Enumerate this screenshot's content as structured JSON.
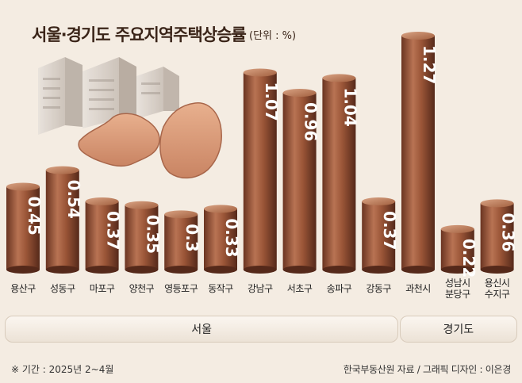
{
  "chart_data": {
    "type": "bar",
    "title": "서울·경기도 주요지역주택상승률",
    "unit_label": "(단위 : %)",
    "categories": [
      "용산구",
      "성동구",
      "마포구",
      "양천구",
      "영등포구",
      "동작구",
      "강남구",
      "서초구",
      "송파구",
      "강동구",
      "과천시",
      "성남시\n분당구",
      "용신시\n수지구"
    ],
    "values": [
      0.45,
      0.54,
      0.37,
      0.35,
      0.3,
      0.33,
      1.07,
      0.96,
      1.04,
      0.37,
      1.27,
      0.22,
      0.36
    ],
    "value_labels": [
      "0.45",
      "0.54",
      "0.37",
      "0.35",
      "0.3",
      "0.33",
      "1.07",
      "0.96",
      "1.04",
      "0.37",
      "1.27",
      "0.22",
      "0.36"
    ],
    "groups": [
      {
        "label": "서울",
        "count": 10
      },
      {
        "label": "경기도",
        "count": 3
      }
    ],
    "ylim": [
      0,
      1.27
    ],
    "grid": false,
    "bar_colors": {
      "light": "#c98f6e",
      "mid": "#9c5a3c",
      "dark": "#5e2f1d"
    }
  },
  "footer": {
    "note": "※ 기간 : 2025년 2~4월",
    "source": "한국부동산원 자료 / 그래픽 디자인 : 이은경"
  }
}
